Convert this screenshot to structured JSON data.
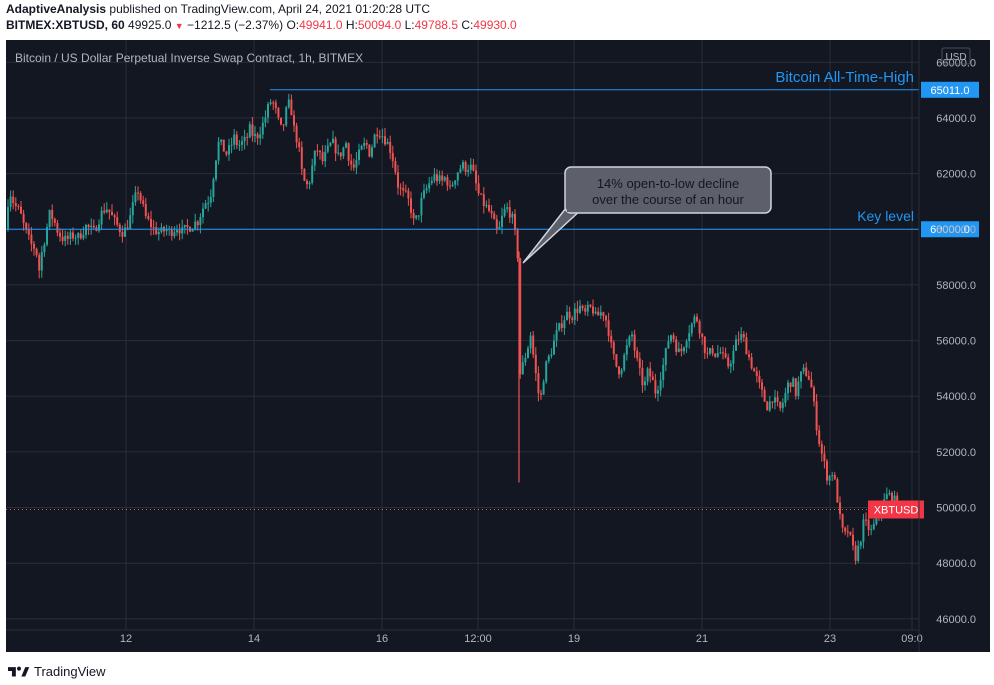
{
  "header": {
    "author": "AdaptiveAnalysis",
    "published_text": "published on TradingView.com, April 24, 2021 01:20:28 UTC",
    "symbol_interval": "BITMEX:XBTUSD, 60",
    "last_price": "49925.0",
    "change": "−1212.5 (−2.37%)",
    "o_label": "O:",
    "o_value": "49941.0",
    "h_label": "H:",
    "h_value": "50094.0",
    "l_label": "L:",
    "l_value": "49788.5",
    "c_label": "C:",
    "c_value": "49930.0"
  },
  "footer": {
    "brand": "TradingView"
  },
  "colors": {
    "background": "#131722",
    "grid": "#2a2e39",
    "up": "#26a69a",
    "down": "#ef5350",
    "level_line": "#2196f3",
    "price_tag": "#f23645",
    "axis_text": "#b2b5be"
  },
  "chart_data": {
    "type": "candlestick",
    "title": "Bitcoin / US Dollar Perpetual Inverse Swap Contract, 1h, BITMEX",
    "currency_label": "USD",
    "ylim": [
      45600,
      66800
    ],
    "y_ticks": [
      "66000.0",
      "64000.0",
      "62000.0",
      "60000.0",
      "58000.0",
      "56000.0",
      "54000.0",
      "52000.0",
      "50000.0",
      "48000.0",
      "46000.0"
    ],
    "x_ticks": [
      "12",
      "14",
      "16",
      "12:00",
      "19",
      "21",
      "23",
      "09:0"
    ],
    "grid": true,
    "horizontal_lines": [
      {
        "label": "Bitcoin All-Time-High",
        "value": 65011.0,
        "tag": "65011.0"
      },
      {
        "label": "Key level",
        "value": 60000.0,
        "tag": "60000.0"
      }
    ],
    "current_price": {
      "value": 49930.0,
      "tag": "XBTUSD"
    },
    "annotation": {
      "text_line1": "14% open-to-low decline",
      "text_line2": "over the course of an hour"
    },
    "ohlc_path": [
      [
        0,
        60000
      ],
      [
        3,
        61500
      ],
      [
        6,
        61100
      ],
      [
        10,
        60800
      ],
      [
        14,
        60600
      ],
      [
        18,
        60100
      ],
      [
        22,
        59700
      ],
      [
        26,
        59400
      ],
      [
        30,
        59300
      ],
      [
        33,
        58500
      ],
      [
        36,
        59200
      ],
      [
        40,
        59900
      ],
      [
        44,
        60600
      ],
      [
        48,
        60300
      ],
      [
        52,
        59900
      ],
      [
        56,
        59700
      ],
      [
        60,
        59600
      ],
      [
        64,
        59700
      ],
      [
        68,
        59800
      ],
      [
        72,
        59700
      ],
      [
        76,
        59900
      ],
      [
        80,
        60100
      ],
      [
        84,
        60000
      ],
      [
        88,
        59900
      ],
      [
        92,
        60300
      ],
      [
        96,
        60600
      ],
      [
        100,
        60800
      ],
      [
        104,
        60600
      ],
      [
        108,
        60300
      ],
      [
        112,
        60100
      ],
      [
        116,
        59900
      ],
      [
        120,
        60000
      ],
      [
        124,
        60400
      ],
      [
        128,
        61000
      ],
      [
        132,
        61400
      ],
      [
        136,
        60900
      ],
      [
        140,
        60400
      ],
      [
        144,
        60200
      ],
      [
        148,
        60000
      ],
      [
        152,
        59900
      ],
      [
        156,
        59900
      ],
      [
        160,
        60000
      ],
      [
        164,
        59900
      ],
      [
        168,
        60000
      ],
      [
        172,
        60100
      ],
      [
        176,
        59900
      ],
      [
        180,
        60000
      ],
      [
        184,
        60100
      ],
      [
        188,
        60200
      ],
      [
        192,
        60300
      ],
      [
        196,
        60700
      ],
      [
        200,
        61000
      ],
      [
        204,
        61100
      ],
      [
        208,
        62100
      ],
      [
        212,
        63100
      ],
      [
        216,
        63000
      ],
      [
        220,
        62700
      ],
      [
        224,
        62900
      ],
      [
        228,
        63300
      ],
      [
        232,
        63000
      ],
      [
        236,
        63100
      ],
      [
        240,
        63200
      ],
      [
        244,
        63600
      ],
      [
        248,
        63300
      ],
      [
        252,
        63400
      ],
      [
        256,
        63700
      ],
      [
        260,
        64100
      ],
      [
        264,
        64600
      ],
      [
        268,
        64500
      ],
      [
        272,
        63900
      ],
      [
        276,
        63500
      ],
      [
        280,
        64200
      ],
      [
        284,
        64600
      ],
      [
        288,
        63600
      ],
      [
        292,
        63100
      ],
      [
        296,
        62000
      ],
      [
        300,
        61500
      ],
      [
        304,
        61800
      ],
      [
        308,
        62600
      ],
      [
        312,
        62900
      ],
      [
        316,
        62400
      ],
      [
        320,
        62700
      ],
      [
        324,
        63000
      ],
      [
        328,
        63100
      ],
      [
        332,
        62600
      ],
      [
        336,
        62800
      ],
      [
        340,
        63100
      ],
      [
        344,
        62400
      ],
      [
        348,
        62200
      ],
      [
        352,
        62600
      ],
      [
        356,
        62900
      ],
      [
        360,
        63100
      ],
      [
        364,
        62700
      ],
      [
        368,
        63300
      ],
      [
        372,
        63600
      ],
      [
        376,
        63400
      ],
      [
        380,
        63200
      ],
      [
        384,
        62900
      ],
      [
        388,
        62400
      ],
      [
        392,
        61600
      ],
      [
        396,
        61300
      ],
      [
        400,
        61200
      ],
      [
        404,
        60900
      ],
      [
        408,
        60200
      ],
      [
        412,
        60500
      ],
      [
        416,
        61100
      ],
      [
        420,
        61400
      ],
      [
        424,
        61700
      ],
      [
        428,
        61900
      ],
      [
        432,
        61800
      ],
      [
        436,
        61700
      ],
      [
        440,
        61900
      ],
      [
        444,
        61400
      ],
      [
        448,
        61800
      ],
      [
        452,
        62100
      ],
      [
        456,
        62300
      ],
      [
        460,
        62200
      ],
      [
        464,
        62300
      ],
      [
        468,
        61900
      ],
      [
        472,
        61300
      ],
      [
        476,
        61000
      ],
      [
        480,
        60800
      ],
      [
        484,
        60600
      ],
      [
        488,
        60200
      ],
      [
        492,
        59800
      ],
      [
        496,
        60400
      ],
      [
        500,
        60800
      ],
      [
        504,
        60600
      ],
      [
        508,
        60200
      ],
      [
        510,
        59400
      ],
      [
        512,
        59000
      ],
      [
        513,
        56200
      ],
      [
        514,
        54800
      ],
      [
        516,
        55000
      ],
      [
        519,
        55400
      ],
      [
        522,
        55800
      ],
      [
        525,
        56300
      ],
      [
        528,
        55200
      ],
      [
        531,
        54500
      ],
      [
        534,
        53700
      ],
      [
        537,
        54600
      ],
      [
        540,
        55100
      ],
      [
        543,
        55400
      ],
      [
        546,
        55700
      ],
      [
        550,
        56200
      ],
      [
        554,
        56500
      ],
      [
        558,
        56800
      ],
      [
        562,
        57000
      ],
      [
        566,
        56900
      ],
      [
        570,
        57100
      ],
      [
        574,
        57200
      ],
      [
        578,
        56900
      ],
      [
        582,
        57100
      ],
      [
        586,
        57200
      ],
      [
        590,
        56800
      ],
      [
        594,
        57000
      ],
      [
        598,
        57000
      ],
      [
        602,
        56500
      ],
      [
        606,
        55600
      ],
      [
        610,
        55100
      ],
      [
        614,
        54900
      ],
      [
        618,
        55400
      ],
      [
        622,
        55900
      ],
      [
        626,
        56200
      ],
      [
        630,
        55400
      ],
      [
        634,
        54800
      ],
      [
        638,
        54300
      ],
      [
        642,
        54900
      ],
      [
        646,
        54600
      ],
      [
        650,
        54100
      ],
      [
        654,
        54700
      ],
      [
        658,
        55200
      ],
      [
        662,
        56000
      ],
      [
        666,
        56300
      ],
      [
        670,
        55800
      ],
      [
        674,
        55500
      ],
      [
        678,
        55900
      ],
      [
        682,
        56300
      ],
      [
        686,
        56600
      ],
      [
        690,
        56900
      ],
      [
        694,
        56400
      ],
      [
        698,
        55800
      ],
      [
        702,
        55400
      ],
      [
        706,
        55700
      ],
      [
        710,
        55500
      ],
      [
        714,
        55600
      ],
      [
        718,
        55300
      ],
      [
        722,
        55100
      ],
      [
        726,
        55400
      ],
      [
        730,
        55900
      ],
      [
        734,
        56200
      ],
      [
        738,
        56000
      ],
      [
        742,
        55500
      ],
      [
        746,
        55100
      ],
      [
        750,
        54700
      ],
      [
        754,
        54300
      ],
      [
        758,
        53900
      ],
      [
        762,
        53600
      ],
      [
        766,
        54000
      ],
      [
        770,
        53700
      ],
      [
        774,
        53500
      ],
      [
        778,
        53900
      ],
      [
        782,
        54400
      ],
      [
        786,
        54600
      ],
      [
        790,
        54100
      ],
      [
        794,
        54700
      ],
      [
        798,
        54900
      ],
      [
        802,
        54800
      ],
      [
        806,
        54200
      ],
      [
        810,
        53100
      ],
      [
        814,
        52200
      ],
      [
        818,
        51600
      ],
      [
        822,
        51000
      ],
      [
        826,
        51300
      ],
      [
        830,
        50700
      ],
      [
        834,
        49600
      ],
      [
        838,
        48900
      ],
      [
        842,
        49200
      ],
      [
        846,
        48600
      ],
      [
        850,
        48200
      ],
      [
        854,
        48800
      ],
      [
        858,
        49500
      ],
      [
        862,
        49300
      ],
      [
        866,
        49100
      ],
      [
        870,
        49600
      ],
      [
        874,
        49900
      ],
      [
        878,
        50200
      ],
      [
        882,
        50500
      ],
      [
        886,
        50300
      ],
      [
        890,
        50200
      ],
      [
        894,
        49930
      ]
    ]
  }
}
